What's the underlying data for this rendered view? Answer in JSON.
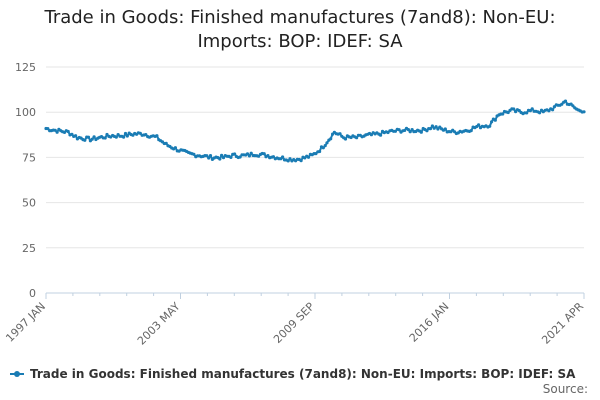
{
  "title_lines": [
    "Trade in Goods: Finished manufactures (7and8): Non-EU:",
    "Imports: BOP: IDEF: SA"
  ],
  "source_label": "Source:",
  "colors": {
    "series": "#1a7cb4",
    "grid": "#e6e6e6",
    "axis": "#c0d0e0",
    "text": "#666666",
    "title": "#222222"
  },
  "chart_data": {
    "type": "line",
    "title": "Trade in Goods: Finished manufactures (7and8): Non-EU: Imports: BOP: IDEF: SA",
    "xlabel": "",
    "ylabel": "",
    "ylim": [
      0,
      125
    ],
    "y_ticks": [
      0,
      25,
      50,
      75,
      100,
      125
    ],
    "x_ticks": [
      "1997 JAN",
      "2003 MAY",
      "2009 SEP",
      "2016 JAN",
      "2021 APR"
    ],
    "x_start": "1997-01",
    "x_end": "2021-04",
    "grid": true,
    "legend_position": "bottom",
    "series": [
      {
        "name": "Trade in Goods: Finished manufactures (7and8): Non-EU: Imports: BOP: IDEF: SA",
        "anchor_points": [
          [
            "1997-01",
            91
          ],
          [
            "1997-06",
            90
          ],
          [
            "1998-01",
            89
          ],
          [
            "1998-06",
            86
          ],
          [
            "1999-01",
            85
          ],
          [
            "1999-06",
            86
          ],
          [
            "2000-01",
            87
          ],
          [
            "2000-06",
            87
          ],
          [
            "2001-01",
            88
          ],
          [
            "2001-06",
            88
          ],
          [
            "2002-01",
            86
          ],
          [
            "2002-06",
            82
          ],
          [
            "2003-01",
            79
          ],
          [
            "2003-06",
            77
          ],
          [
            "2004-01",
            76
          ],
          [
            "2004-06",
            75
          ],
          [
            "2005-01",
            75
          ],
          [
            "2005-06",
            76
          ],
          [
            "2006-01",
            76
          ],
          [
            "2006-06",
            77
          ],
          [
            "2007-01",
            76
          ],
          [
            "2007-06",
            75
          ],
          [
            "2008-01",
            74
          ],
          [
            "2008-06",
            74
          ],
          [
            "2009-01",
            76
          ],
          [
            "2009-06",
            80
          ],
          [
            "2009-10",
            85
          ],
          [
            "2010-01",
            89
          ],
          [
            "2010-06",
            86
          ],
          [
            "2011-01",
            86
          ],
          [
            "2011-06",
            87
          ],
          [
            "2012-01",
            88
          ],
          [
            "2012-06",
            89
          ],
          [
            "2013-01",
            90
          ],
          [
            "2013-06",
            90
          ],
          [
            "2014-01",
            90
          ],
          [
            "2014-06",
            92
          ],
          [
            "2015-01",
            90
          ],
          [
            "2015-06",
            89
          ],
          [
            "2016-01",
            90
          ],
          [
            "2016-06",
            92
          ],
          [
            "2017-01",
            93
          ],
          [
            "2017-06",
            99
          ],
          [
            "2018-01",
            101
          ],
          [
            "2018-06",
            100
          ],
          [
            "2019-01",
            101
          ],
          [
            "2019-06",
            100
          ],
          [
            "2020-01",
            103
          ],
          [
            "2020-06",
            106
          ],
          [
            "2020-10",
            103
          ],
          [
            "2021-01",
            101
          ],
          [
            "2021-04",
            101
          ]
        ]
      }
    ]
  }
}
